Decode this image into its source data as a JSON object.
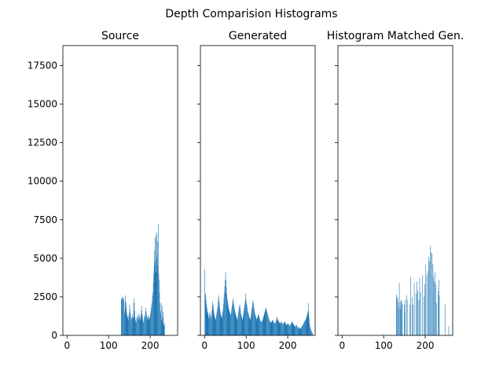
{
  "figure_title": "Depth Comparision Histograms",
  "bar_color": "#1f77b4",
  "chart_data": [
    {
      "type": "bar",
      "title": "Source",
      "xlabel": "",
      "ylabel": "",
      "xlim": [
        -10,
        266
      ],
      "ylim": [
        0,
        18800
      ],
      "xticks": [
        0,
        100,
        200
      ],
      "yticks": [
        0,
        2500,
        5000,
        7500,
        10000,
        12500,
        15000,
        17500
      ],
      "shared_y": true,
      "bin_start": 130,
      "bin_width": 1,
      "values": [
        2300,
        2400,
        2450,
        2350,
        2500,
        2400,
        2300,
        1600,
        1400,
        2200,
        2600,
        2100,
        1800,
        1500,
        1300,
        1200,
        1100,
        1000,
        1300,
        1500,
        2000,
        1700,
        1400,
        1200,
        1100,
        1000,
        1200,
        1400,
        1200,
        1100,
        2400,
        2100,
        1600,
        1200,
        1000,
        900,
        800,
        1100,
        1300,
        1200,
        1000,
        1100,
        1400,
        1300,
        1200,
        1000,
        1100,
        1300,
        1600,
        1900,
        1400,
        1200,
        1000,
        900,
        800,
        1100,
        1300,
        1200,
        1600,
        1800,
        1500,
        1300,
        1200,
        1000,
        1100,
        1300,
        1200,
        1000,
        1100,
        1200,
        1400,
        1600,
        1800,
        2000,
        2200,
        2600,
        2800,
        3400,
        4000,
        4500,
        5500,
        6300,
        4800,
        6500,
        4100,
        6700,
        5100,
        6100,
        4500,
        7200,
        4000,
        3600,
        2800,
        2100,
        1600,
        1400,
        2100,
        1000,
        1900,
        900,
        1200,
        1500,
        700,
        600,
        800
      ]
    },
    {
      "type": "bar",
      "title": "Generated",
      "xlabel": "",
      "ylabel": "",
      "xlim": [
        -10,
        266
      ],
      "ylim": [
        0,
        18800
      ],
      "xticks": [
        0,
        100,
        200
      ],
      "yticks": [
        0,
        2500,
        5000,
        7500,
        10000,
        12500,
        15000,
        17500
      ],
      "shared_y": true,
      "bin_start": 0,
      "bin_width": 1,
      "values": [
        4300,
        2600,
        2700,
        2300,
        2000,
        1800,
        1600,
        1500,
        1400,
        1200,
        1100,
        1300,
        1500,
        1400,
        1200,
        1100,
        1300,
        1600,
        1900,
        2200,
        2000,
        1700,
        1500,
        1300,
        1200,
        1100,
        1000,
        1100,
        1300,
        1500,
        1700,
        1900,
        2200,
        2600,
        2400,
        2100,
        1800,
        1600,
        1400,
        1300,
        1200,
        1100,
        1300,
        1500,
        1700,
        2000,
        2400,
        2800,
        3200,
        3600,
        4100,
        3600,
        3100,
        2700,
        2400,
        2200,
        2000,
        1800,
        1700,
        1600,
        1500,
        1400,
        1300,
        1400,
        1600,
        1800,
        2000,
        2200,
        2400,
        2200,
        2000,
        1800,
        1600,
        1500,
        1400,
        1300,
        1200,
        1100,
        1000,
        1100,
        1300,
        1500,
        1700,
        1900,
        2000,
        1800,
        1600,
        1400,
        1300,
        1200,
        1100,
        1000,
        1200,
        1400,
        1600,
        1800,
        2000,
        2200,
        2700,
        2400,
        2200,
        2000,
        1800,
        1600,
        1500,
        1400,
        1300,
        1200,
        1100,
        1000,
        1100,
        1300,
        1500,
        1700,
        1900,
        2100,
        2300,
        2100,
        1900,
        1700,
        1500,
        1400,
        1300,
        1200,
        1100,
        1000,
        1100,
        1200,
        1300,
        1400,
        1300,
        1200,
        1100,
        1000,
        950,
        900,
        850,
        900,
        950,
        1000,
        1100,
        1200,
        1300,
        1400,
        1500,
        1600,
        1700,
        1800,
        1700,
        1600,
        1500,
        1400,
        1300,
        1200,
        1100,
        1000,
        950,
        900,
        850,
        800,
        850,
        900,
        950,
        1000,
        950,
        900,
        850,
        800,
        750,
        800,
        850,
        900,
        1000,
        1100,
        1200,
        1100,
        1000,
        950,
        900,
        850,
        800,
        750,
        800,
        850,
        900,
        850,
        800,
        750,
        700,
        750,
        800,
        850,
        900,
        850,
        800,
        750,
        700,
        650,
        700,
        750,
        800,
        750,
        700,
        650,
        600,
        650,
        700,
        750,
        800,
        850,
        900,
        850,
        800,
        750,
        700,
        650,
        600,
        550,
        600,
        650,
        700,
        650,
        600,
        550,
        500,
        450,
        500,
        550,
        500,
        450,
        400,
        450,
        500,
        550,
        600,
        650,
        700,
        750,
        800,
        850,
        900,
        950,
        1000,
        1050,
        1100,
        1200,
        1300,
        1400,
        1600,
        2100,
        1500,
        1100,
        800,
        600,
        500,
        400,
        300,
        250,
        200,
        150
      ]
    },
    {
      "type": "bar",
      "title": "Histogram Matched Gen.",
      "xlabel": "",
      "ylabel": "",
      "xlim": [
        -10,
        266
      ],
      "ylim": [
        0,
        18800
      ],
      "xticks": [
        0,
        100,
        200
      ],
      "yticks": [
        0,
        2500,
        5000,
        7500,
        10000,
        12500,
        15000,
        17500
      ],
      "shared_y": true,
      "bin_start": 130,
      "bin_width": 1,
      "values": [
        2650,
        2400,
        0,
        2500,
        2200,
        0,
        1800,
        3400,
        0,
        2200,
        1700,
        2300,
        0,
        2000,
        2200,
        0,
        0,
        0,
        0,
        2000,
        1500,
        2300,
        0,
        0,
        0,
        2600,
        2300,
        0,
        0,
        0,
        0,
        0,
        2000,
        0,
        3800,
        0,
        0,
        0,
        2500,
        0,
        2000,
        0,
        0,
        3400,
        0,
        0,
        0,
        2700,
        0,
        3500,
        0,
        2900,
        0,
        0,
        2300,
        0,
        3700,
        0,
        2800,
        0,
        0,
        0,
        0,
        3900,
        0,
        0,
        2500,
        0,
        3300,
        0,
        4600,
        0,
        0,
        3900,
        0,
        0,
        4200,
        0,
        5100,
        0,
        4800,
        0,
        5800,
        0,
        5400,
        0,
        5300,
        0,
        4600,
        3800,
        0,
        3500,
        0,
        4100,
        0,
        3300,
        0,
        2100,
        0,
        0,
        2900,
        0,
        3600,
        2600,
        0,
        0,
        0,
        0,
        0,
        0,
        0,
        0,
        0,
        0,
        0,
        0,
        0,
        2000,
        0,
        0,
        0,
        0,
        0,
        0,
        0,
        0,
        600,
        0,
        0
      ]
    }
  ]
}
